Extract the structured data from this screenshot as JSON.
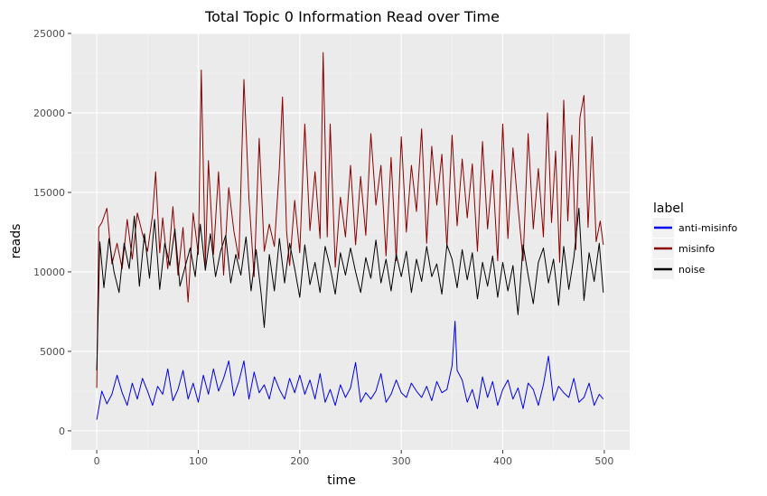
{
  "chart_data": {
    "type": "line",
    "title": "Total Topic 0 Information Read over Time",
    "xlabel": "time",
    "ylabel": "reads",
    "xlim": [
      -25,
      525
    ],
    "ylim": [
      -1200,
      25000
    ],
    "xticks": [
      0,
      100,
      200,
      300,
      400,
      500
    ],
    "yticks": [
      0,
      5000,
      10000,
      15000,
      20000,
      25000
    ],
    "grid": true,
    "legend": {
      "title": "label",
      "placement": "right"
    },
    "series": [
      {
        "name": "anti-misinfo",
        "color": "#0000ee",
        "x": [
          0,
          5,
          10,
          15,
          20,
          25,
          30,
          35,
          40,
          45,
          50,
          55,
          60,
          65,
          70,
          75,
          80,
          85,
          90,
          95,
          100,
          105,
          110,
          115,
          120,
          125,
          130,
          135,
          140,
          145,
          150,
          155,
          160,
          165,
          170,
          175,
          180,
          185,
          190,
          195,
          200,
          205,
          210,
          215,
          220,
          225,
          230,
          235,
          240,
          245,
          250,
          255,
          260,
          265,
          270,
          275,
          280,
          285,
          290,
          295,
          300,
          305,
          310,
          315,
          320,
          325,
          330,
          335,
          340,
          345,
          350,
          353,
          355,
          360,
          365,
          370,
          375,
          380,
          385,
          390,
          395,
          400,
          405,
          410,
          415,
          420,
          425,
          430,
          435,
          440,
          445,
          450,
          455,
          460,
          465,
          470,
          475,
          480,
          485,
          490,
          495,
          499
        ],
        "y": [
          700,
          2500,
          1700,
          2300,
          3500,
          2400,
          1600,
          3000,
          2000,
          3300,
          2500,
          1600,
          2800,
          2300,
          3900,
          1900,
          2600,
          3800,
          2000,
          3000,
          1800,
          3500,
          2300,
          3900,
          2500,
          3300,
          4400,
          2200,
          3100,
          4400,
          2000,
          3700,
          2400,
          2900,
          2000,
          3400,
          2600,
          2000,
          3300,
          2400,
          3500,
          2300,
          3200,
          2000,
          3600,
          1800,
          2600,
          1600,
          2900,
          2100,
          2700,
          4300,
          1800,
          2400,
          2000,
          2500,
          3600,
          1800,
          2300,
          3200,
          2400,
          2100,
          3000,
          2500,
          2100,
          2800,
          1900,
          3100,
          2400,
          2600,
          4100,
          6900,
          3800,
          3200,
          1800,
          2600,
          1400,
          3400,
          2100,
          3100,
          1600,
          2600,
          3200,
          2000,
          2700,
          1400,
          3000,
          2600,
          1600,
          2900,
          4700,
          1900,
          2800,
          2400,
          2100,
          3300,
          1800,
          2100,
          3000,
          1600,
          2300,
          2000
        ]
      },
      {
        "name": "misinfo",
        "color": "#8b0000",
        "x": [
          0,
          2,
          5,
          10,
          15,
          20,
          25,
          30,
          35,
          40,
          45,
          50,
          55,
          58,
          62,
          65,
          70,
          75,
          80,
          85,
          90,
          95,
          100,
          103,
          107,
          110,
          115,
          120,
          125,
          130,
          135,
          140,
          145,
          150,
          155,
          160,
          165,
          170,
          175,
          180,
          183,
          187,
          190,
          195,
          200,
          205,
          210,
          215,
          220,
          223,
          227,
          230,
          235,
          240,
          245,
          250,
          255,
          260,
          265,
          270,
          275,
          280,
          285,
          290,
          295,
          300,
          305,
          310,
          315,
          320,
          325,
          330,
          335,
          340,
          345,
          350,
          355,
          360,
          365,
          370,
          375,
          380,
          385,
          390,
          395,
          400,
          405,
          410,
          415,
          420,
          425,
          430,
          435,
          440,
          444,
          448,
          452,
          456,
          460,
          464,
          468,
          472,
          476,
          480,
          484,
          488,
          492,
          496,
          499
        ],
        "y": [
          2700,
          12800,
          13100,
          14000,
          10500,
          11800,
          10200,
          13300,
          10800,
          13700,
          12400,
          11300,
          13600,
          16300,
          11200,
          13400,
          10200,
          14100,
          9800,
          12800,
          8100,
          13700,
          11100,
          22700,
          10400,
          17000,
          11100,
          16300,
          9800,
          15300,
          12600,
          10800,
          22100,
          14600,
          9700,
          18400,
          11300,
          13000,
          11600,
          16600,
          21000,
          12600,
          10400,
          14500,
          11200,
          19300,
          12600,
          16300,
          12100,
          23800,
          12200,
          19300,
          10300,
          14700,
          12200,
          16700,
          11700,
          16000,
          12300,
          18700,
          14200,
          16700,
          11000,
          17200,
          10700,
          18500,
          12500,
          16700,
          13800,
          19000,
          11800,
          17900,
          14200,
          17400,
          11500,
          18600,
          12900,
          17100,
          13400,
          16800,
          11300,
          18200,
          12700,
          16400,
          10700,
          19300,
          12100,
          17800,
          14100,
          10700,
          18700,
          12700,
          16500,
          12200,
          20000,
          13100,
          17600,
          10600,
          20800,
          13200,
          18600,
          11400,
          19700,
          21100,
          12800,
          18500,
          11900,
          13200,
          11700
        ]
      },
      {
        "name": "noise",
        "color": "#000000",
        "x": [
          0,
          3,
          7,
          12,
          17,
          22,
          27,
          32,
          37,
          42,
          47,
          52,
          57,
          62,
          67,
          72,
          77,
          82,
          87,
          92,
          97,
          102,
          107,
          112,
          117,
          122,
          127,
          132,
          137,
          142,
          147,
          152,
          157,
          162,
          165,
          170,
          175,
          180,
          185,
          190,
          195,
          200,
          205,
          210,
          215,
          220,
          225,
          230,
          235,
          240,
          245,
          250,
          255,
          260,
          265,
          270,
          275,
          280,
          285,
          290,
          295,
          300,
          305,
          310,
          315,
          320,
          325,
          330,
          335,
          340,
          345,
          350,
          355,
          360,
          365,
          370,
          375,
          380,
          385,
          390,
          395,
          400,
          405,
          410,
          415,
          420,
          425,
          430,
          435,
          440,
          445,
          450,
          455,
          460,
          465,
          470,
          475,
          480,
          485,
          490,
          495,
          499
        ],
        "y": [
          3800,
          11900,
          9000,
          12100,
          10000,
          8700,
          11800,
          10200,
          13500,
          9100,
          12400,
          9600,
          13300,
          8900,
          11800,
          10400,
          12700,
          9100,
          10300,
          11500,
          9700,
          13000,
          10100,
          12400,
          9700,
          11300,
          12300,
          9300,
          11100,
          9800,
          12200,
          8800,
          11400,
          8600,
          6500,
          11100,
          8800,
          12100,
          9300,
          11800,
          10200,
          8400,
          11700,
          9200,
          10600,
          8700,
          11600,
          10300,
          8600,
          11200,
          9800,
          11500,
          10000,
          8700,
          10900,
          9600,
          12000,
          9300,
          10800,
          8800,
          11100,
          9700,
          11300,
          8700,
          10800,
          9400,
          11600,
          9700,
          10500,
          8600,
          11700,
          10800,
          9000,
          11400,
          9500,
          11200,
          8300,
          10600,
          9100,
          11000,
          8400,
          10600,
          8800,
          10400,
          7300,
          11700,
          9800,
          8000,
          10600,
          11500,
          9300,
          10800,
          7900,
          11600,
          8900,
          10900,
          14000,
          8200,
          11200,
          9400,
          11800,
          8700
        ]
      }
    ]
  }
}
